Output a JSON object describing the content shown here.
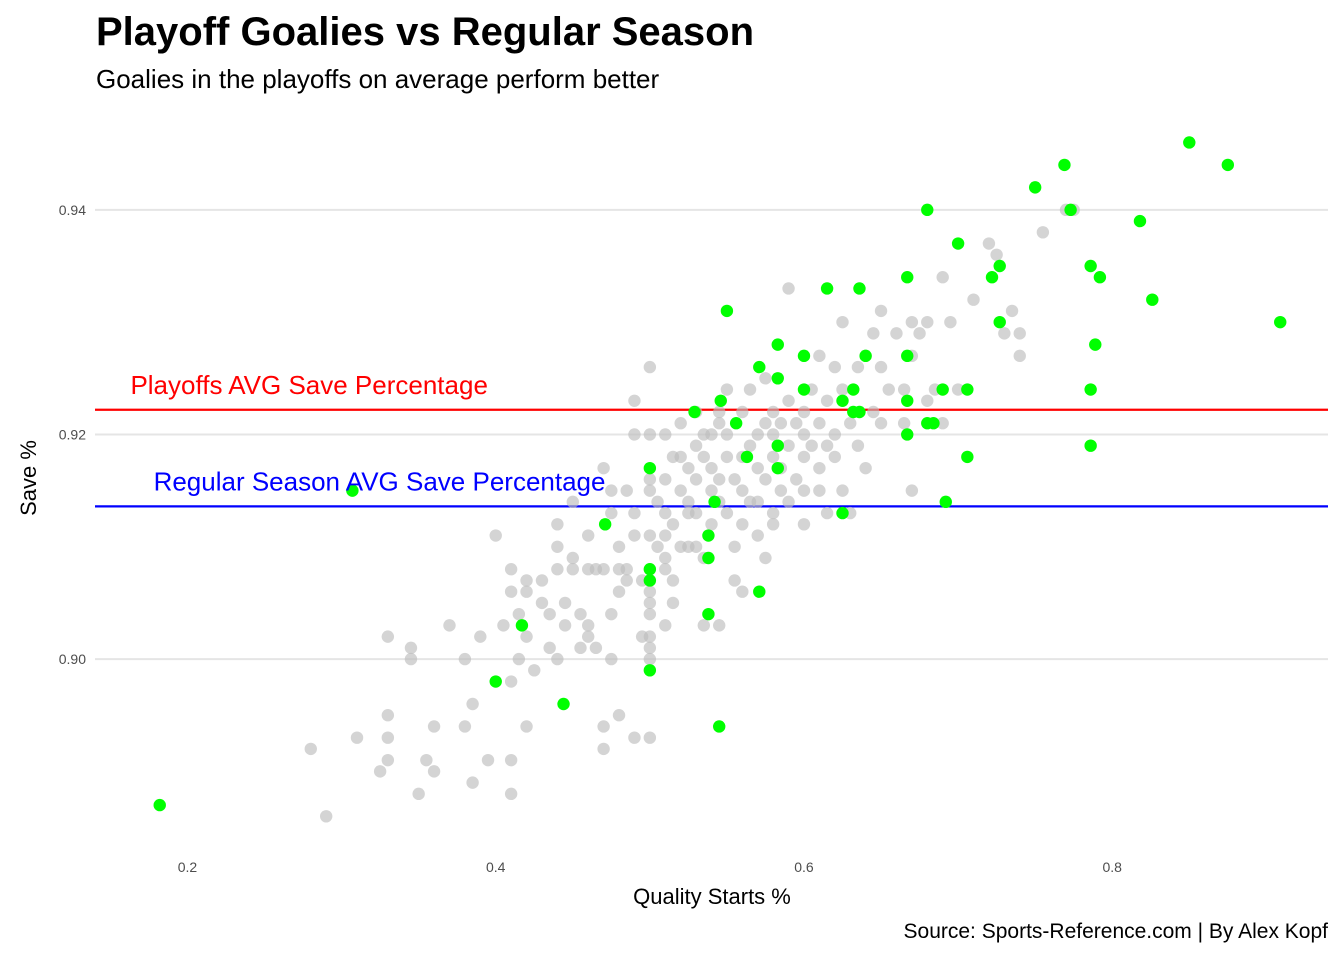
{
  "chart_data": {
    "type": "scatter",
    "title": "Playoff Goalies vs Regular Season",
    "subtitle": "Goalies in the playoffs on average perform better",
    "caption": "Source: Sports-Reference.com | By Alex Kopf",
    "xlabel": "Quality Starts %",
    "ylabel": "Save %",
    "xlim": [
      0.14,
      0.94
    ],
    "ylim": [
      0.883,
      0.948
    ],
    "xticks": [
      0.2,
      0.4,
      0.6,
      0.8
    ],
    "xtick_labels": [
      "0.2",
      "0.4",
      "0.6",
      "0.8"
    ],
    "yticks": [
      0.9,
      0.92,
      0.94
    ],
    "ytick_labels": [
      "0.90",
      "0.92",
      "0.94"
    ],
    "grid": true,
    "legend": "none",
    "reference_lines": [
      {
        "label": "Playoffs AVG Save Percentage",
        "y": 0.9222,
        "color": "#ff0000",
        "label_x": 0.163
      },
      {
        "label": "Regular Season AVG Save Percentage",
        "y": 0.9136,
        "color": "#0000ff",
        "label_x": 0.178
      }
    ],
    "series": [
      {
        "color": "#bdbdbd",
        "points": [
          [
            0.28,
            0.892
          ],
          [
            0.29,
            0.886
          ],
          [
            0.31,
            0.893
          ],
          [
            0.325,
            0.89
          ],
          [
            0.33,
            0.902
          ],
          [
            0.33,
            0.895
          ],
          [
            0.33,
            0.893
          ],
          [
            0.33,
            0.891
          ],
          [
            0.345,
            0.901
          ],
          [
            0.345,
            0.9
          ],
          [
            0.35,
            0.888
          ],
          [
            0.355,
            0.891
          ],
          [
            0.36,
            0.89
          ],
          [
            0.36,
            0.894
          ],
          [
            0.37,
            0.903
          ],
          [
            0.38,
            0.894
          ],
          [
            0.38,
            0.9
          ],
          [
            0.385,
            0.896
          ],
          [
            0.385,
            0.889
          ],
          [
            0.39,
            0.902
          ],
          [
            0.395,
            0.891
          ],
          [
            0.4,
            0.911
          ],
          [
            0.405,
            0.903
          ],
          [
            0.41,
            0.898
          ],
          [
            0.41,
            0.888
          ],
          [
            0.41,
            0.891
          ],
          [
            0.41,
            0.908
          ],
          [
            0.41,
            0.906
          ],
          [
            0.415,
            0.9
          ],
          [
            0.415,
            0.904
          ],
          [
            0.42,
            0.907
          ],
          [
            0.42,
            0.906
          ],
          [
            0.42,
            0.902
          ],
          [
            0.42,
            0.894
          ],
          [
            0.425,
            0.899
          ],
          [
            0.43,
            0.905
          ],
          [
            0.43,
            0.907
          ],
          [
            0.435,
            0.904
          ],
          [
            0.435,
            0.901
          ],
          [
            0.44,
            0.9
          ],
          [
            0.44,
            0.908
          ],
          [
            0.44,
            0.91
          ],
          [
            0.44,
            0.912
          ],
          [
            0.445,
            0.905
          ],
          [
            0.445,
            0.903
          ],
          [
            0.45,
            0.909
          ],
          [
            0.45,
            0.908
          ],
          [
            0.45,
            0.914
          ],
          [
            0.455,
            0.904
          ],
          [
            0.455,
            0.901
          ],
          [
            0.46,
            0.908
          ],
          [
            0.46,
            0.902
          ],
          [
            0.46,
            0.911
          ],
          [
            0.46,
            0.903
          ],
          [
            0.465,
            0.908
          ],
          [
            0.465,
            0.901
          ],
          [
            0.47,
            0.917
          ],
          [
            0.47,
            0.908
          ],
          [
            0.47,
            0.894
          ],
          [
            0.47,
            0.892
          ],
          [
            0.475,
            0.913
          ],
          [
            0.475,
            0.915
          ],
          [
            0.475,
            0.904
          ],
          [
            0.475,
            0.9
          ],
          [
            0.48,
            0.908
          ],
          [
            0.48,
            0.906
          ],
          [
            0.48,
            0.91
          ],
          [
            0.48,
            0.895
          ],
          [
            0.485,
            0.907
          ],
          [
            0.485,
            0.908
          ],
          [
            0.485,
            0.915
          ],
          [
            0.49,
            0.911
          ],
          [
            0.49,
            0.913
          ],
          [
            0.49,
            0.92
          ],
          [
            0.49,
            0.923
          ],
          [
            0.49,
            0.893
          ],
          [
            0.495,
            0.907
          ],
          [
            0.495,
            0.902
          ],
          [
            0.5,
            0.905
          ],
          [
            0.5,
            0.92
          ],
          [
            0.5,
            0.911
          ],
          [
            0.5,
            0.915
          ],
          [
            0.5,
            0.908
          ],
          [
            0.5,
            0.907
          ],
          [
            0.5,
            0.916
          ],
          [
            0.5,
            0.9
          ],
          [
            0.5,
            0.901
          ],
          [
            0.5,
            0.902
          ],
          [
            0.5,
            0.904
          ],
          [
            0.5,
            0.906
          ],
          [
            0.5,
            0.893
          ],
          [
            0.5,
            0.926
          ],
          [
            0.505,
            0.91
          ],
          [
            0.505,
            0.914
          ],
          [
            0.51,
            0.913
          ],
          [
            0.51,
            0.916
          ],
          [
            0.51,
            0.911
          ],
          [
            0.51,
            0.92
          ],
          [
            0.51,
            0.909
          ],
          [
            0.515,
            0.912
          ],
          [
            0.515,
            0.918
          ],
          [
            0.515,
            0.907
          ],
          [
            0.52,
            0.921
          ],
          [
            0.52,
            0.91
          ],
          [
            0.52,
            0.915
          ],
          [
            0.52,
            0.918
          ],
          [
            0.525,
            0.917
          ],
          [
            0.525,
            0.913
          ],
          [
            0.525,
            0.91
          ],
          [
            0.53,
            0.919
          ],
          [
            0.53,
            0.916
          ],
          [
            0.53,
            0.922
          ],
          [
            0.53,
            0.913
          ],
          [
            0.535,
            0.909
          ],
          [
            0.535,
            0.918
          ],
          [
            0.535,
            0.92
          ],
          [
            0.54,
            0.915
          ],
          [
            0.54,
            0.917
          ],
          [
            0.54,
            0.912
          ],
          [
            0.54,
            0.92
          ],
          [
            0.545,
            0.921
          ],
          [
            0.545,
            0.916
          ],
          [
            0.545,
            0.914
          ],
          [
            0.545,
            0.922
          ],
          [
            0.55,
            0.918
          ],
          [
            0.55,
            0.924
          ],
          [
            0.55,
            0.913
          ],
          [
            0.55,
            0.92
          ],
          [
            0.555,
            0.916
          ],
          [
            0.555,
            0.91
          ],
          [
            0.56,
            0.915
          ],
          [
            0.56,
            0.912
          ],
          [
            0.56,
            0.922
          ],
          [
            0.56,
            0.918
          ],
          [
            0.565,
            0.919
          ],
          [
            0.565,
            0.924
          ],
          [
            0.565,
            0.914
          ],
          [
            0.57,
            0.92
          ],
          [
            0.57,
            0.917
          ],
          [
            0.57,
            0.911
          ],
          [
            0.575,
            0.916
          ],
          [
            0.575,
            0.921
          ],
          [
            0.575,
            0.925
          ],
          [
            0.58,
            0.913
          ],
          [
            0.58,
            0.918
          ],
          [
            0.58,
            0.922
          ],
          [
            0.58,
            0.92
          ],
          [
            0.585,
            0.917
          ],
          [
            0.585,
            0.921
          ],
          [
            0.585,
            0.915
          ],
          [
            0.59,
            0.919
          ],
          [
            0.59,
            0.923
          ],
          [
            0.59,
            0.933
          ],
          [
            0.595,
            0.916
          ],
          [
            0.595,
            0.921
          ],
          [
            0.6,
            0.92
          ],
          [
            0.6,
            0.915
          ],
          [
            0.6,
            0.922
          ],
          [
            0.6,
            0.918
          ],
          [
            0.605,
            0.924
          ],
          [
            0.605,
            0.919
          ],
          [
            0.61,
            0.927
          ],
          [
            0.61,
            0.921
          ],
          [
            0.61,
            0.917
          ],
          [
            0.615,
            0.923
          ],
          [
            0.615,
            0.913
          ],
          [
            0.62,
            0.926
          ],
          [
            0.62,
            0.92
          ],
          [
            0.62,
            0.918
          ],
          [
            0.625,
            0.93
          ],
          [
            0.625,
            0.924
          ],
          [
            0.625,
            0.915
          ],
          [
            0.63,
            0.921
          ],
          [
            0.63,
            0.913
          ],
          [
            0.635,
            0.926
          ],
          [
            0.635,
            0.919
          ],
          [
            0.64,
            0.927
          ],
          [
            0.64,
            0.917
          ],
          [
            0.645,
            0.929
          ],
          [
            0.645,
            0.922
          ],
          [
            0.65,
            0.926
          ],
          [
            0.65,
            0.931
          ],
          [
            0.65,
            0.921
          ],
          [
            0.655,
            0.924
          ],
          [
            0.66,
            0.929
          ],
          [
            0.665,
            0.921
          ],
          [
            0.665,
            0.924
          ],
          [
            0.67,
            0.927
          ],
          [
            0.67,
            0.93
          ],
          [
            0.67,
            0.915
          ],
          [
            0.675,
            0.929
          ],
          [
            0.68,
            0.923
          ],
          [
            0.68,
            0.93
          ],
          [
            0.685,
            0.924
          ],
          [
            0.69,
            0.934
          ],
          [
            0.69,
            0.921
          ],
          [
            0.695,
            0.93
          ],
          [
            0.7,
            0.924
          ],
          [
            0.71,
            0.932
          ],
          [
            0.72,
            0.937
          ],
          [
            0.725,
            0.936
          ],
          [
            0.73,
            0.929
          ],
          [
            0.735,
            0.931
          ],
          [
            0.74,
            0.927
          ],
          [
            0.74,
            0.929
          ],
          [
            0.755,
            0.938
          ],
          [
            0.77,
            0.94
          ],
          [
            0.775,
            0.94
          ],
          [
            0.57,
            0.914
          ],
          [
            0.58,
            0.912
          ],
          [
            0.59,
            0.914
          ],
          [
            0.6,
            0.912
          ],
          [
            0.61,
            0.915
          ],
          [
            0.615,
            0.919
          ],
          [
            0.53,
            0.91
          ],
          [
            0.525,
            0.914
          ],
          [
            0.515,
            0.905
          ],
          [
            0.51,
            0.908
          ],
          [
            0.51,
            0.903
          ],
          [
            0.56,
            0.906
          ],
          [
            0.575,
            0.909
          ],
          [
            0.555,
            0.907
          ],
          [
            0.545,
            0.903
          ],
          [
            0.535,
            0.903
          ]
        ]
      },
      {
        "color": "#00ff00",
        "points": [
          [
            0.182,
            0.887
          ],
          [
            0.307,
            0.915
          ],
          [
            0.4,
            0.898
          ],
          [
            0.417,
            0.903
          ],
          [
            0.444,
            0.896
          ],
          [
            0.471,
            0.912
          ],
          [
            0.5,
            0.917
          ],
          [
            0.5,
            0.908
          ],
          [
            0.5,
            0.907
          ],
          [
            0.5,
            0.899
          ],
          [
            0.529,
            0.922
          ],
          [
            0.538,
            0.911
          ],
          [
            0.538,
            0.909
          ],
          [
            0.538,
            0.904
          ],
          [
            0.542,
            0.914
          ],
          [
            0.546,
            0.923
          ],
          [
            0.545,
            0.894
          ],
          [
            0.55,
            0.931
          ],
          [
            0.556,
            0.921
          ],
          [
            0.563,
            0.918
          ],
          [
            0.571,
            0.926
          ],
          [
            0.571,
            0.906
          ],
          [
            0.583,
            0.928
          ],
          [
            0.583,
            0.925
          ],
          [
            0.583,
            0.919
          ],
          [
            0.583,
            0.917
          ],
          [
            0.6,
            0.927
          ],
          [
            0.6,
            0.924
          ],
          [
            0.615,
            0.933
          ],
          [
            0.625,
            0.923
          ],
          [
            0.625,
            0.913
          ],
          [
            0.632,
            0.924
          ],
          [
            0.632,
            0.922
          ],
          [
            0.636,
            0.933
          ],
          [
            0.636,
            0.922
          ],
          [
            0.64,
            0.927
          ],
          [
            0.667,
            0.934
          ],
          [
            0.667,
            0.927
          ],
          [
            0.667,
            0.923
          ],
          [
            0.667,
            0.92
          ],
          [
            0.68,
            0.94
          ],
          [
            0.68,
            0.921
          ],
          [
            0.684,
            0.921
          ],
          [
            0.69,
            0.924
          ],
          [
            0.692,
            0.914
          ],
          [
            0.7,
            0.937
          ],
          [
            0.706,
            0.924
          ],
          [
            0.706,
            0.918
          ],
          [
            0.722,
            0.934
          ],
          [
            0.727,
            0.935
          ],
          [
            0.727,
            0.93
          ],
          [
            0.75,
            0.942
          ],
          [
            0.769,
            0.944
          ],
          [
            0.773,
            0.94
          ],
          [
            0.786,
            0.935
          ],
          [
            0.786,
            0.924
          ],
          [
            0.786,
            0.919
          ],
          [
            0.789,
            0.928
          ],
          [
            0.792,
            0.934
          ],
          [
            0.818,
            0.939
          ],
          [
            0.826,
            0.932
          ],
          [
            0.85,
            0.946
          ],
          [
            0.875,
            0.944
          ],
          [
            0.909,
            0.93
          ]
        ]
      }
    ]
  }
}
